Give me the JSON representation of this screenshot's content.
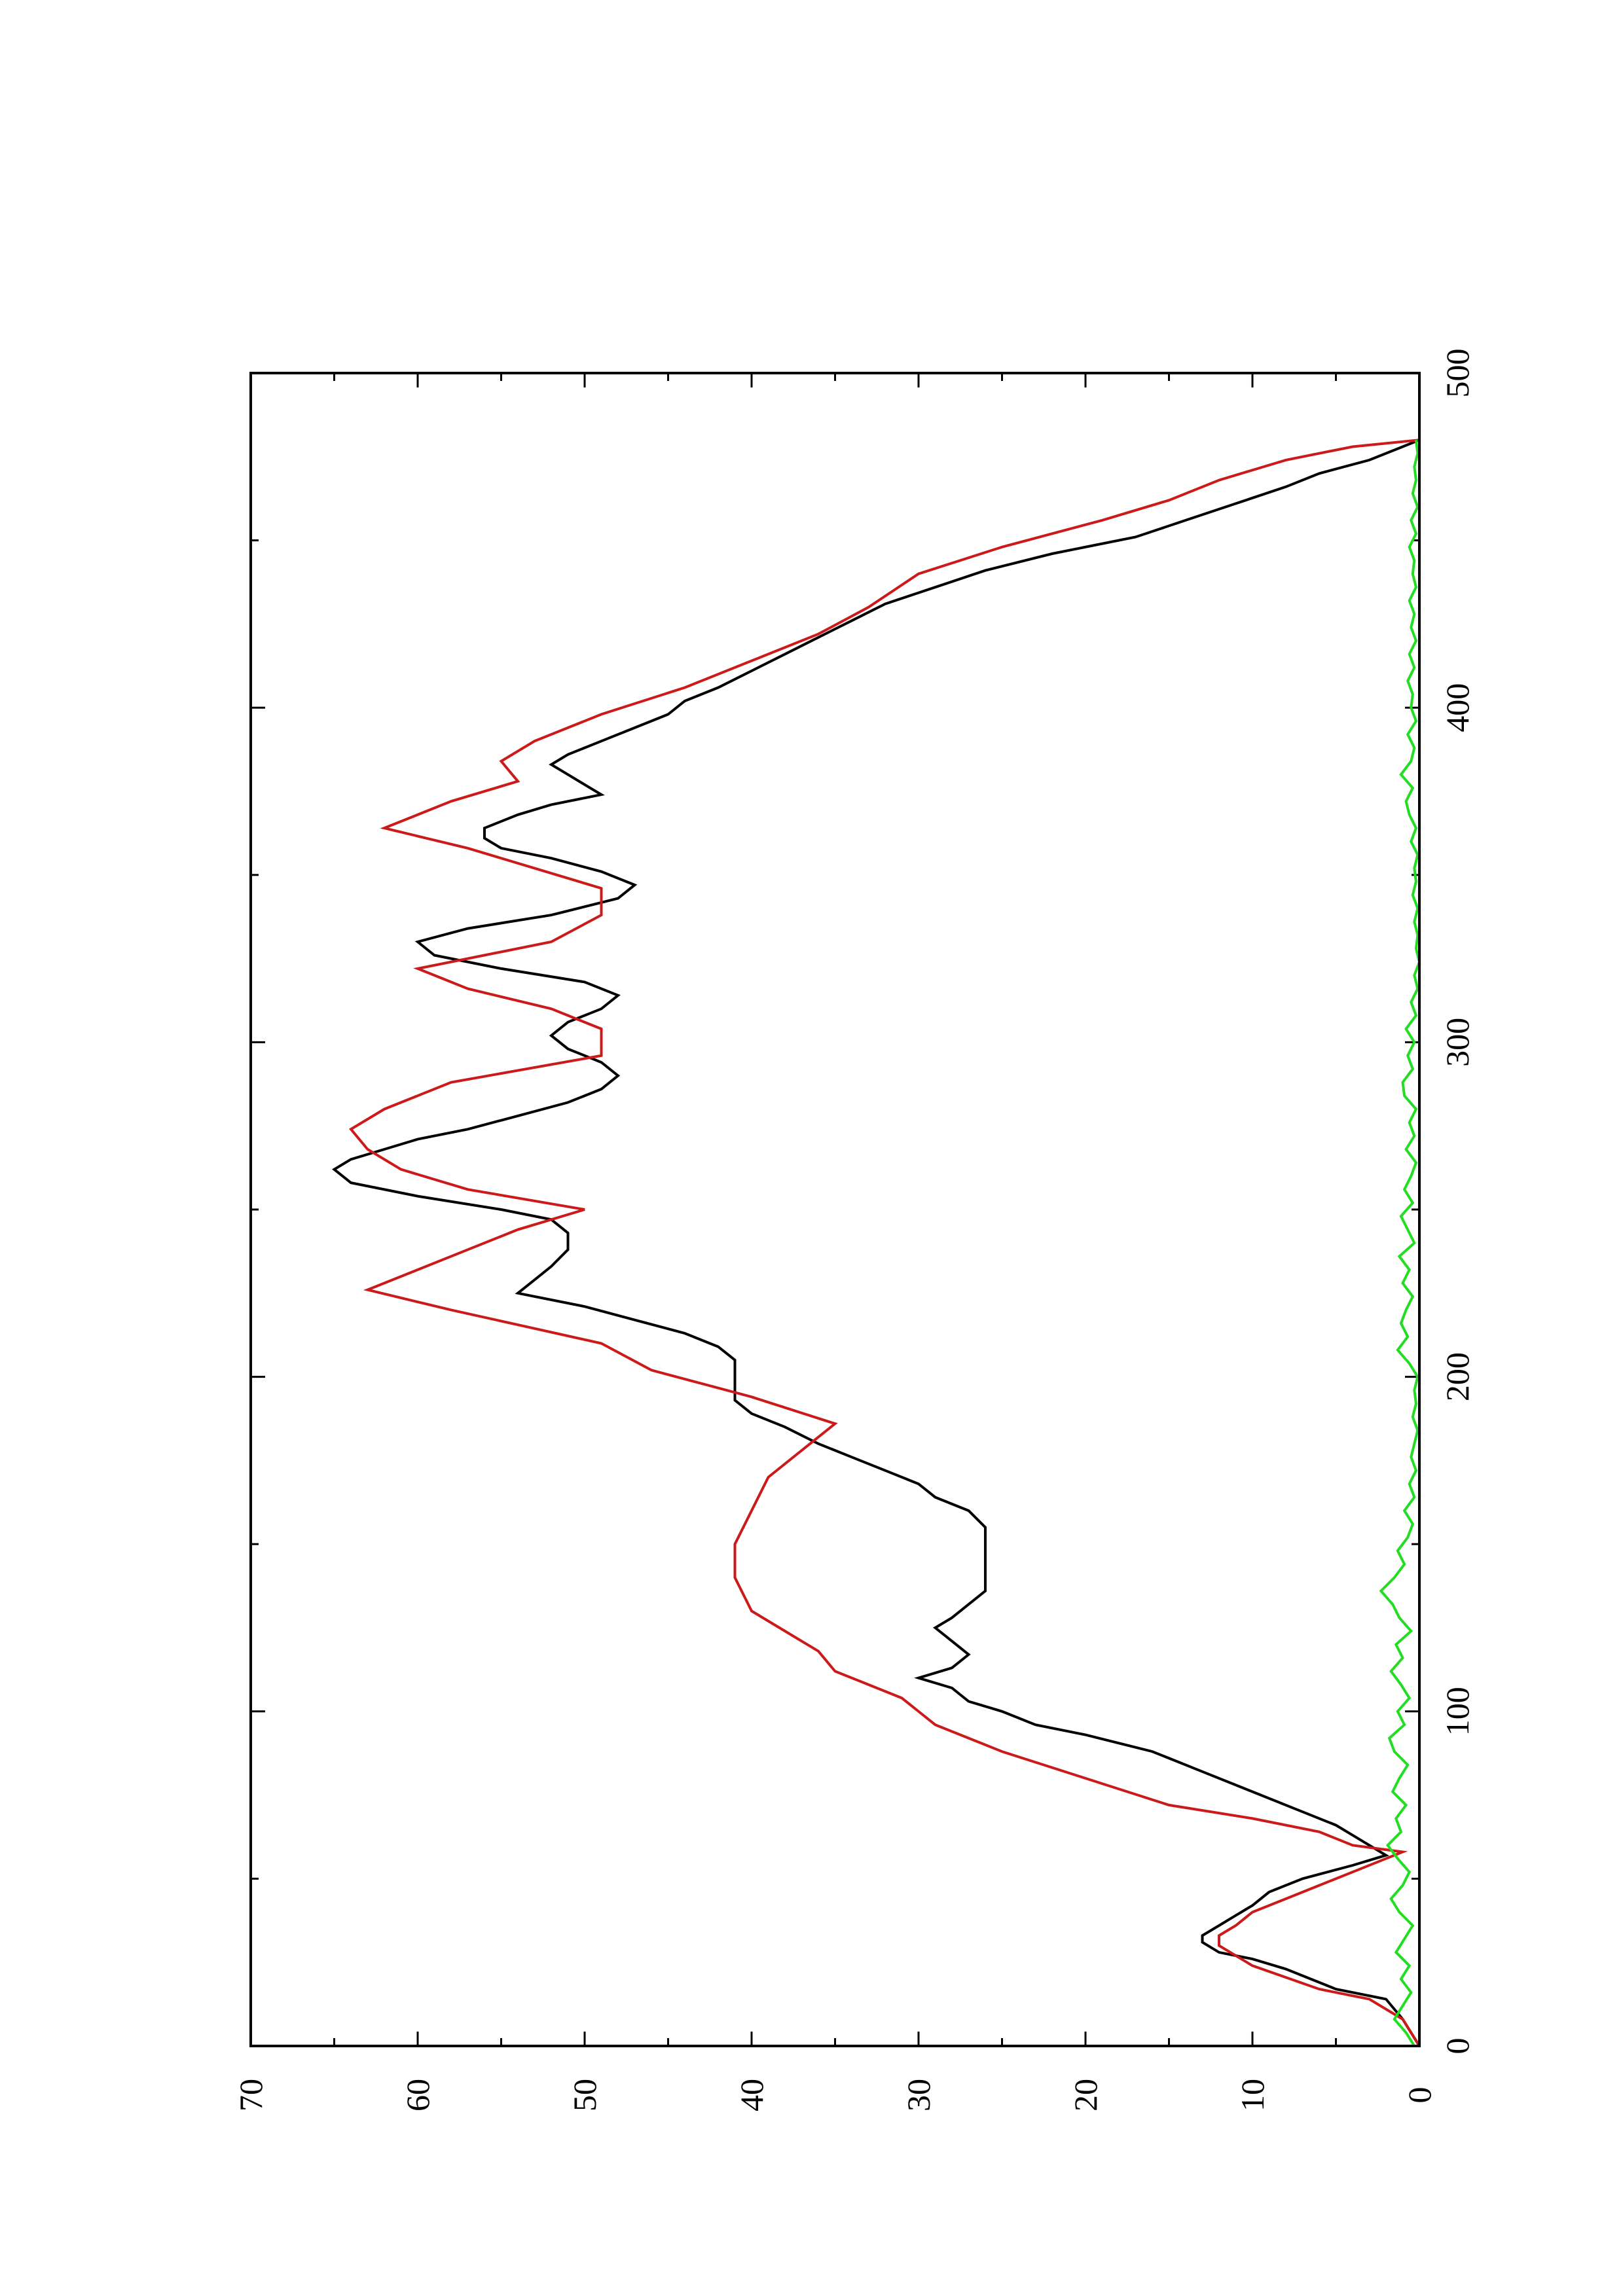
{
  "chart_data": {
    "type": "line",
    "orientation": "rotated 90 degrees counter-clockwise",
    "title": "",
    "xlabel": "",
    "ylabel": "",
    "xlim": [
      0,
      500
    ],
    "ylim": [
      0,
      70
    ],
    "x_ticks": [
      0,
      100,
      200,
      300,
      400,
      500
    ],
    "y_ticks": [
      0,
      10,
      20,
      30,
      40,
      50,
      60,
      70
    ],
    "x_tick_labels": [
      "0",
      "100",
      "200",
      "300",
      "400",
      "500"
    ],
    "y_tick_labels": [
      "0",
      "10",
      "20",
      "30",
      "40",
      "50",
      "60",
      "70"
    ],
    "grid": false,
    "legend": "none",
    "series": [
      {
        "color": "#000000",
        "x": [
          0,
          8,
          14,
          17,
          23,
          26,
          28,
          31,
          33,
          36,
          39,
          42,
          46,
          50,
          54,
          57,
          60,
          63,
          66,
          70,
          76,
          82,
          88,
          93,
          96,
          100,
          103,
          107,
          110,
          113,
          117,
          121,
          125,
          128,
          132,
          136,
          140,
          145,
          150,
          155,
          160,
          164,
          168,
          172,
          176,
          180,
          185,
          189,
          193,
          197,
          201,
          205,
          209,
          213,
          217,
          221,
          225,
          229,
          233,
          238,
          243,
          247,
          250,
          254,
          258,
          262,
          265,
          268,
          271,
          274,
          278,
          282,
          286,
          290,
          294,
          298,
          302,
          306,
          310,
          314,
          318,
          322,
          326,
          330,
          334,
          338,
          343,
          347,
          351,
          355,
          358,
          361,
          364,
          368,
          371,
          374,
          377,
          380,
          383,
          386,
          390,
          394,
          398,
          402,
          406,
          411,
          416,
          421,
          426,
          431,
          436,
          441,
          446,
          451,
          456,
          461,
          466,
          470,
          474,
          478,
          480
        ],
        "y": [
          0,
          1,
          2,
          5,
          8,
          10,
          12,
          13,
          13,
          12,
          11,
          10,
          9,
          7,
          4,
          2,
          3,
          4,
          5,
          7,
          10,
          13,
          16,
          20,
          23,
          25,
          27,
          28,
          30,
          28,
          27,
          28,
          29,
          28,
          27,
          26,
          26,
          26,
          26,
          26,
          27,
          29,
          30,
          32,
          34,
          36,
          38,
          40,
          41,
          41,
          41,
          41,
          42,
          44,
          47,
          50,
          54,
          53,
          52,
          51,
          51,
          52,
          55,
          60,
          64,
          65,
          64,
          62,
          60,
          57,
          54,
          51,
          49,
          48,
          49,
          51,
          52,
          51,
          49,
          48,
          50,
          55,
          59,
          60,
          57,
          52,
          48,
          47,
          49,
          52,
          55,
          56,
          56,
          54,
          52,
          49,
          50,
          51,
          52,
          51,
          49,
          47,
          45,
          44,
          42,
          40,
          38,
          36,
          34,
          32,
          29,
          26,
          22,
          17,
          14,
          11,
          8,
          6,
          3,
          1,
          0
        ]
      },
      {
        "color": "#cc1a1a",
        "x": [
          0,
          8,
          14,
          17,
          24,
          30,
          33,
          36,
          40,
          44,
          48,
          52,
          56,
          58,
          60,
          64,
          68,
          72,
          80,
          88,
          96,
          104,
          108,
          112,
          118,
          124,
          130,
          140,
          150,
          160,
          170,
          178,
          186,
          194,
          202,
          210,
          220,
          226,
          232,
          238,
          244,
          250,
          256,
          262,
          268,
          274,
          280,
          288,
          296,
          304,
          310,
          316,
          322,
          330,
          338,
          346,
          352,
          358,
          364,
          372,
          378,
          384,
          390,
          398,
          406,
          414,
          422,
          430,
          440,
          448,
          456,
          462,
          468,
          474,
          478,
          480
        ],
        "y": [
          0,
          1,
          3,
          6,
          10,
          12,
          12,
          11,
          10,
          8,
          6,
          4,
          2,
          1,
          4,
          6,
          10,
          15,
          20,
          25,
          29,
          31,
          33,
          35,
          36,
          38,
          40,
          41,
          41,
          40,
          39,
          37,
          35,
          40,
          46,
          49,
          58,
          63,
          60,
          57,
          54,
          50,
          57,
          61,
          63,
          64,
          62,
          58,
          49,
          49,
          52,
          57,
          60,
          52,
          49,
          49,
          53,
          57,
          62,
          58,
          54,
          55,
          53,
          49,
          44,
          40,
          36,
          33,
          30,
          25,
          19,
          15,
          12,
          8,
          4,
          0
        ]
      },
      {
        "color": "#22dd22",
        "x": [
          0,
          4,
          8,
          12,
          16,
          20,
          24,
          28,
          32,
          36,
          40,
          44,
          48,
          52,
          56,
          60,
          64,
          68,
          72,
          76,
          80,
          84,
          88,
          92,
          96,
          100,
          104,
          108,
          112,
          116,
          120,
          124,
          128,
          132,
          136,
          140,
          144,
          148,
          152,
          156,
          160,
          164,
          168,
          172,
          176,
          180,
          184,
          188,
          192,
          196,
          200,
          204,
          208,
          212,
          216,
          220,
          224,
          228,
          232,
          236,
          240,
          244,
          248,
          252,
          256,
          260,
          264,
          268,
          272,
          276,
          280,
          284,
          288,
          292,
          296,
          300,
          304,
          308,
          312,
          316,
          320,
          324,
          328,
          332,
          336,
          340,
          344,
          348,
          352,
          356,
          360,
          364,
          368,
          372,
          376,
          380,
          384,
          388,
          392,
          396,
          400,
          404,
          408,
          412,
          416,
          420,
          424,
          428,
          432,
          436,
          440,
          444,
          448,
          452,
          456,
          460,
          464,
          468,
          472,
          476,
          480
        ],
        "y": [
          0.3,
          0.8,
          1.5,
          1.0,
          0.5,
          1.1,
          0.6,
          1.4,
          0.9,
          0.4,
          1.2,
          1.7,
          1.0,
          0.6,
          1.3,
          1.9,
          1.1,
          1.4,
          0.8,
          1.6,
          1.2,
          0.7,
          1.5,
          1.8,
          0.9,
          1.3,
          0.6,
          1.1,
          1.7,
          1.0,
          1.4,
          0.5,
          1.2,
          1.6,
          2.3,
          1.5,
          0.9,
          1.3,
          0.7,
          0.4,
          0.9,
          0.3,
          0.6,
          0.2,
          0.5,
          0.3,
          0.1,
          0.4,
          0.2,
          0.3,
          0.1,
          0.6,
          1.3,
          0.7,
          1.1,
          0.8,
          0.4,
          1.0,
          0.6,
          1.2,
          0.3,
          0.7,
          1.1,
          0.4,
          0.9,
          0.5,
          0.2,
          0.8,
          0.3,
          0.6,
          0.2,
          0.9,
          1.0,
          0.4,
          0.7,
          0.3,
          0.8,
          0.2,
          0.5,
          0.1,
          0.3,
          0.0,
          0.2,
          0.1,
          0.3,
          0.1,
          0.4,
          0.2,
          0.3,
          0.1,
          0.5,
          0.2,
          0.6,
          0.8,
          0.4,
          1.1,
          0.5,
          0.3,
          0.7,
          0.2,
          0.5,
          0.4,
          0.7,
          0.3,
          0.6,
          0.2,
          0.5,
          0.3,
          0.6,
          0.2,
          0.4,
          0.3,
          0.6,
          0.2,
          0.5,
          0.1,
          0.4,
          0.2,
          0.3,
          0.1,
          0.2
        ]
      }
    ]
  }
}
